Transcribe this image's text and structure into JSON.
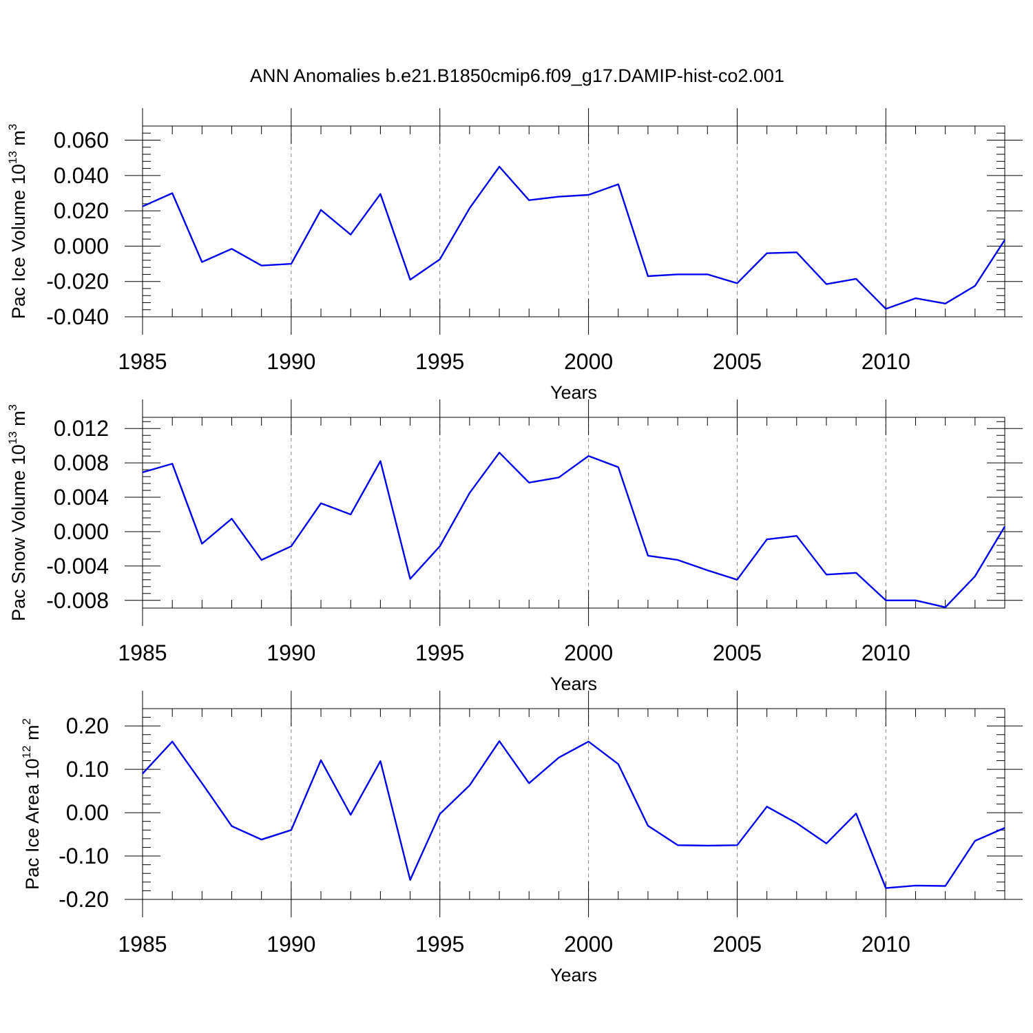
{
  "page": {
    "title": "ANN Anomalies b.e21.B1850cmip6.f09_g17.DAMIP-hist-co2.001"
  },
  "chart_data": [
    {
      "type": "line",
      "title": "",
      "xlabel": "Years",
      "ylabel": "Pac Ice Volume 10",
      "ylabel_sup": "13",
      "ylabel_unit": " m",
      "ylabel_unit_sup": "3",
      "xlim": [
        1985,
        2014
      ],
      "ylim": [
        -0.04,
        0.068
      ],
      "x_ticks": [
        1985,
        1990,
        1995,
        2000,
        2005,
        2010
      ],
      "y_ticks": [
        -0.04,
        -0.02,
        0.0,
        0.02,
        0.04,
        0.06
      ],
      "y_tick_labels": [
        "-0.040",
        "-0.020",
        "0.000",
        "0.020",
        "0.040",
        "0.060"
      ],
      "grid": "vertical dashed at major x ticks",
      "color": "#0000ee",
      "x": [
        1985,
        1986,
        1987,
        1988,
        1989,
        1990,
        1991,
        1992,
        1993,
        1994,
        1995,
        1996,
        1997,
        1998,
        1999,
        2000,
        2001,
        2002,
        2003,
        2004,
        2005,
        2006,
        2007,
        2008,
        2009,
        2010,
        2011,
        2012,
        2013,
        2014
      ],
      "values": [
        0.0225,
        0.03,
        -0.009,
        -0.0015,
        -0.011,
        -0.01,
        0.0205,
        0.0065,
        0.0295,
        -0.019,
        -0.0075,
        0.0215,
        0.045,
        0.026,
        0.028,
        0.029,
        0.035,
        -0.017,
        -0.016,
        -0.016,
        -0.021,
        -0.004,
        -0.0035,
        -0.0215,
        -0.0185,
        -0.0355,
        -0.0295,
        -0.0325,
        -0.0225,
        0.0035
      ]
    },
    {
      "type": "line",
      "title": "",
      "xlabel": "Years",
      "ylabel": "Pac Snow Volume 10",
      "ylabel_sup": "13",
      "ylabel_unit": " m",
      "ylabel_unit_sup": "3",
      "xlim": [
        1985,
        2014
      ],
      "ylim": [
        -0.0089,
        0.0133
      ],
      "x_ticks": [
        1985,
        1990,
        1995,
        2000,
        2005,
        2010
      ],
      "y_ticks": [
        -0.008,
        -0.004,
        0.0,
        0.004,
        0.008,
        0.012
      ],
      "y_tick_labels": [
        "-0.008",
        "-0.004",
        "0.000",
        "0.004",
        "0.008",
        "0.012"
      ],
      "grid": "vertical dashed at major x ticks",
      "color": "#0000ee",
      "x": [
        1985,
        1986,
        1987,
        1988,
        1989,
        1990,
        1991,
        1992,
        1993,
        1994,
        1995,
        1996,
        1997,
        1998,
        1999,
        2000,
        2001,
        2002,
        2003,
        2004,
        2005,
        2006,
        2007,
        2008,
        2009,
        2010,
        2011,
        2012,
        2013,
        2014
      ],
      "values": [
        0.0069,
        0.0079,
        -0.0014,
        0.0015,
        -0.0033,
        -0.0017,
        0.0033,
        0.002,
        0.0082,
        -0.0055,
        -0.0017,
        0.0045,
        0.0092,
        0.0057,
        0.0063,
        0.0088,
        0.0075,
        -0.0028,
        -0.0033,
        -0.0045,
        -0.0056,
        -0.0009,
        -0.0005,
        -0.005,
        -0.0048,
        -0.008,
        -0.008,
        -0.0088,
        -0.0052,
        0.0006
      ]
    },
    {
      "type": "line",
      "title": "",
      "xlabel": "Years",
      "ylabel": "Pac Ice Area 10",
      "ylabel_sup": "12",
      "ylabel_unit": " m",
      "ylabel_unit_sup": "2",
      "xlim": [
        1985,
        2014
      ],
      "ylim": [
        -0.2,
        0.24
      ],
      "x_ticks": [
        1985,
        1990,
        1995,
        2000,
        2005,
        2010
      ],
      "y_ticks": [
        -0.2,
        -0.1,
        0.0,
        0.1,
        0.2
      ],
      "y_tick_labels": [
        "-0.20",
        "-0.10",
        "0.00",
        "0.10",
        "0.20"
      ],
      "grid": "vertical dashed at major x ticks",
      "color": "#0000ee",
      "x": [
        1985,
        1986,
        1987,
        1988,
        1989,
        1990,
        1991,
        1992,
        1993,
        1994,
        1995,
        1996,
        1997,
        1998,
        1999,
        2000,
        2001,
        2002,
        2003,
        2004,
        2005,
        2006,
        2007,
        2008,
        2009,
        2010,
        2011,
        2012,
        2013,
        2014
      ],
      "values": [
        0.09,
        0.164,
        0.068,
        -0.031,
        -0.062,
        -0.04,
        0.121,
        -0.005,
        0.119,
        -0.155,
        -0.003,
        0.063,
        0.165,
        0.068,
        0.127,
        0.164,
        0.112,
        -0.03,
        -0.075,
        -0.076,
        -0.075,
        0.014,
        -0.024,
        -0.071,
        -0.002,
        -0.174,
        -0.168,
        -0.169,
        -0.065,
        -0.035
      ]
    }
  ]
}
